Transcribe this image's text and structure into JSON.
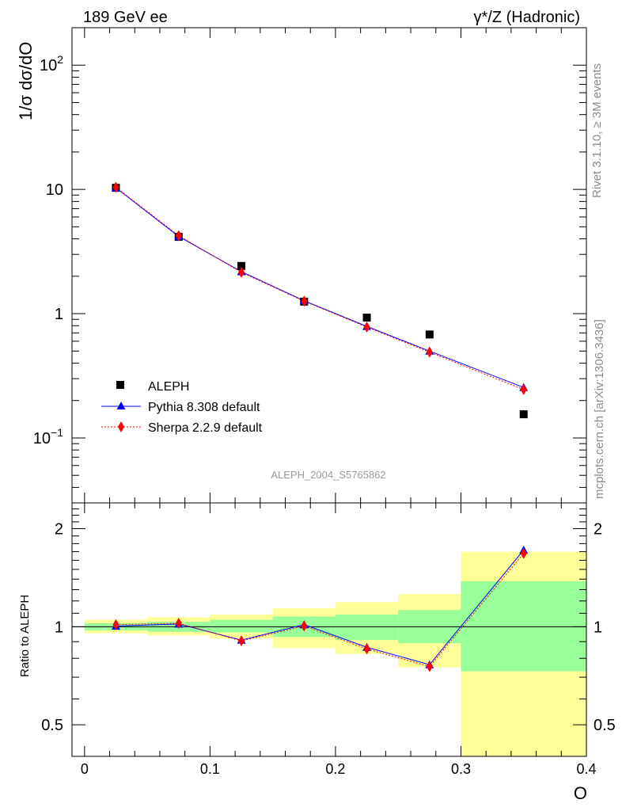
{
  "header": {
    "left": "189 GeV ee",
    "right": "γ*/Z (Hadronic)"
  },
  "side_text": {
    "rivet": "Rivet 3.1.10, ≥ 3M events",
    "mcplots": "mcplots.cern.ch [arXiv:1306.3436]"
  },
  "analysis_label": "ALEPH_2004_S5765862",
  "colors": {
    "data": "#000000",
    "pythia": "#0000ff",
    "sherpa": "#ff0000",
    "band_inner": "#99ff99",
    "band_outer": "#ffff99"
  },
  "chart_data": [
    {
      "type": "line",
      "panel": "main",
      "ylabel": "1/σ dσ/dO",
      "yscale": "log",
      "ylim": [
        0.03,
        200
      ],
      "xlim": [
        -0.01,
        0.4
      ],
      "yticks": [
        {
          "v": 0.1,
          "base": "10",
          "exp": "−1"
        },
        {
          "v": 1,
          "label": "1"
        },
        {
          "v": 10,
          "label": "10"
        },
        {
          "v": 100,
          "base": "10",
          "exp": "2"
        }
      ],
      "series": [
        {
          "name": "ALEPH",
          "marker": "square",
          "x": [
            0.025,
            0.075,
            0.125,
            0.175,
            0.225,
            0.275,
            0.35
          ],
          "y": [
            10.3,
            4.15,
            2.42,
            1.25,
            0.93,
            0.68,
            0.155
          ]
        },
        {
          "name": "Pythia 8.308 default",
          "marker": "triangle",
          "x": [
            0.025,
            0.075,
            0.125,
            0.175,
            0.225,
            0.275,
            0.35
          ],
          "y": [
            10.3,
            4.18,
            2.18,
            1.27,
            0.79,
            0.5,
            0.255
          ]
        },
        {
          "name": "Sherpa 2.2.9 default",
          "marker": "diamond",
          "x": [
            0.025,
            0.075,
            0.125,
            0.175,
            0.225,
            0.275,
            0.35
          ],
          "y": [
            10.4,
            4.25,
            2.15,
            1.26,
            0.78,
            0.49,
            0.245
          ]
        }
      ],
      "legend_position": "bottom-left"
    },
    {
      "type": "line",
      "panel": "ratio",
      "ylabel": "Ratio to ALEPH",
      "xlabel": "O",
      "xlim": [
        -0.01,
        0.4
      ],
      "ylim": [
        0.4,
        2.4
      ],
      "yscale": "log",
      "yticks": [
        0.5,
        1,
        2
      ],
      "xticks": [
        {
          "v": 0,
          "label": "0"
        },
        {
          "v": 0.1,
          "label": "0.1"
        },
        {
          "v": 0.2,
          "label": "0.2"
        },
        {
          "v": 0.3,
          "label": "0.3"
        },
        {
          "v": 0.4,
          "label": "0.4"
        }
      ],
      "bins": [
        {
          "x0": 0.0,
          "x1": 0.05,
          "inner": [
            0.975,
            1.025
          ],
          "outer": [
            0.955,
            1.05
          ]
        },
        {
          "x0": 0.05,
          "x1": 0.1,
          "inner": [
            0.965,
            1.035
          ],
          "outer": [
            0.94,
            1.07
          ]
        },
        {
          "x0": 0.1,
          "x1": 0.15,
          "inner": [
            0.96,
            1.05
          ],
          "outer": [
            0.92,
            1.09
          ]
        },
        {
          "x0": 0.15,
          "x1": 0.2,
          "inner": [
            0.93,
            1.075
          ],
          "outer": [
            0.86,
            1.14
          ]
        },
        {
          "x0": 0.2,
          "x1": 0.25,
          "inner": [
            0.91,
            1.09
          ],
          "outer": [
            0.825,
            1.19
          ]
        },
        {
          "x0": 0.25,
          "x1": 0.3,
          "inner": [
            0.89,
            1.125
          ],
          "outer": [
            0.75,
            1.26
          ]
        },
        {
          "x0": 0.3,
          "x1": 0.4,
          "inner": [
            0.73,
            1.38
          ],
          "outer": [
            0.4,
            1.7
          ]
        }
      ],
      "series": [
        {
          "name": "Pythia 8.308 default",
          "x": [
            0.025,
            0.075,
            0.125,
            0.175,
            0.225,
            0.275,
            0.35
          ],
          "y": [
            1.005,
            1.02,
            0.91,
            1.015,
            0.865,
            0.765,
            1.72
          ]
        },
        {
          "name": "Sherpa 2.2.9 default",
          "x": [
            0.025,
            0.075,
            0.125,
            0.175,
            0.225,
            0.275,
            0.35
          ],
          "y": [
            1.015,
            1.025,
            0.905,
            1.005,
            0.855,
            0.755,
            1.68
          ]
        }
      ]
    }
  ]
}
